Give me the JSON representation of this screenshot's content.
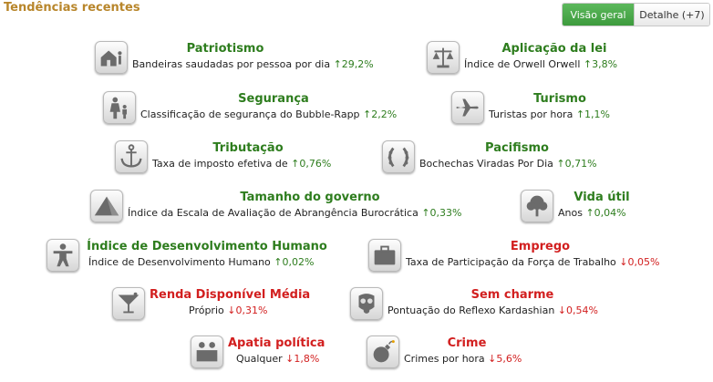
{
  "title": "Tendências recentes",
  "tabs": {
    "overview": "Visão geral",
    "detail": "Detalhe (+7)"
  },
  "colors": {
    "positive": "#2e7d1e",
    "negative": "#d21f1f",
    "header": "#b8862b",
    "tab_active": "#4cae4c"
  },
  "items": [
    {
      "icon": "house-family-icon",
      "title": "Patriotismo",
      "desc": "Bandeiras saudadas por pessoa por dia",
      "val": "↑29,2%",
      "trend": "up"
    },
    {
      "icon": "scales-icon",
      "title": "Aplicação da lei",
      "desc": "Índice de Orwell Orwell",
      "val": "↑3,8%",
      "trend": "up"
    },
    {
      "icon": "family-walking-icon",
      "title": "Segurança",
      "desc": "Classificação de segurança do Bubble-Rapp",
      "val": "↑2,2%",
      "trend": "up"
    },
    {
      "icon": "airplane-icon",
      "title": "Turismo",
      "desc": "Turistas por hora",
      "val": "↑1,1%",
      "trend": "up"
    },
    {
      "icon": "anchor-icon",
      "title": "Tributação",
      "desc": "Taxa de imposto efetiva de",
      "val": "↑0,76%",
      "trend": "up"
    },
    {
      "icon": "laurel-wreath-icon",
      "title": "Pacifismo",
      "desc": "Bochechas Viradas Por Dia",
      "val": "↑0,71%",
      "trend": "up"
    },
    {
      "icon": "pyramid-icon",
      "title": "Tamanho do governo",
      "desc": "Índice da Escala de Avaliação de Abrangência Burocrática",
      "val": "↑0,33%",
      "trend": "up"
    },
    {
      "icon": "tree-icon",
      "title": "Vida útil",
      "desc": "Anos",
      "val": "↑0,04%",
      "trend": "up"
    },
    {
      "icon": "person-icon",
      "title": "Índice de Desenvolvimento Humano",
      "desc": "Índice de Desenvolvimento Humano",
      "val": "↑0,02%",
      "trend": "up"
    },
    {
      "icon": "briefcase-icon",
      "title": "Emprego",
      "desc": "Taxa de Participação da Força de Trabalho",
      "val": "↓0,05%",
      "trend": "down"
    },
    {
      "icon": "cocktail-glass-icon",
      "title": "Renda Disponível Média",
      "desc": "Próprio",
      "val": "↓0,31%",
      "trend": "down"
    },
    {
      "icon": "gas-mask-icon",
      "title": "Sem charme",
      "desc": "Pontuação do Reflexo Kardashian",
      "val": "↓0,54%",
      "trend": "down"
    },
    {
      "icon": "people-pair-icon",
      "title": "Apatia política",
      "desc": "Qualquer",
      "val": "↓1,8%",
      "trend": "down"
    },
    {
      "icon": "bomb-icon",
      "title": "Crime",
      "desc": "Crimes por hora",
      "val": "↓5,6%",
      "trend": "down"
    }
  ]
}
